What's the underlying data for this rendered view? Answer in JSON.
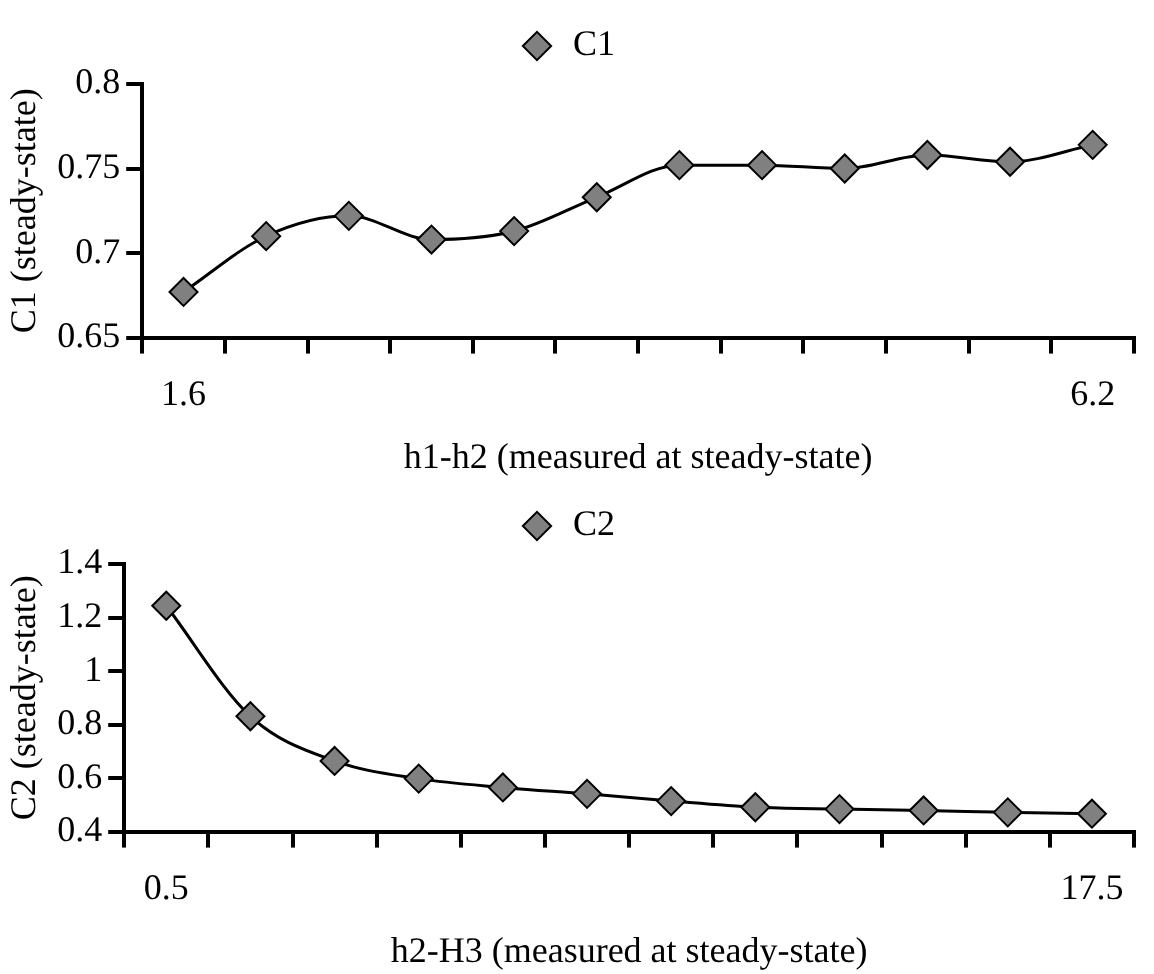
{
  "chart_data": [
    {
      "type": "line",
      "xlabel": "h1-h2 (measured at steady-state)",
      "ylabel": "C1 (steady-state)",
      "categories": [
        "1.6",
        null,
        null,
        null,
        null,
        null,
        null,
        null,
        null,
        null,
        null,
        "6.2"
      ],
      "series": [
        {
          "name": "C1",
          "color": "#808080",
          "values": [
            0.677,
            0.71,
            0.722,
            0.708,
            0.713,
            0.733,
            0.752,
            0.752,
            0.75,
            0.758,
            0.754,
            0.764
          ]
        }
      ],
      "ylim": [
        0.65,
        0.8
      ],
      "yticks": [
        0.65,
        0.7,
        0.75,
        0.8
      ],
      "grid": false,
      "legend": "top",
      "marker": "diamond",
      "line_style": "solid"
    },
    {
      "type": "line",
      "xlabel": "h2-H3 (measured at steady-state)",
      "ylabel": "C2 (steady-state)",
      "categories": [
        "0.5",
        null,
        null,
        null,
        null,
        null,
        null,
        null,
        null,
        null,
        null,
        "17.5"
      ],
      "series": [
        {
          "name": "C2",
          "color": "#808080",
          "values": [
            1.244,
            0.831,
            0.664,
            0.598,
            0.565,
            0.541,
            0.514,
            0.491,
            0.484,
            0.479,
            0.472,
            0.467
          ]
        }
      ],
      "ylim": [
        0.4,
        1.4
      ],
      "yticks": [
        0.4,
        0.6,
        0.8,
        1,
        1.2,
        1.4
      ],
      "grid": false,
      "legend": "top",
      "marker": "diamond",
      "line_style": "solid"
    }
  ]
}
